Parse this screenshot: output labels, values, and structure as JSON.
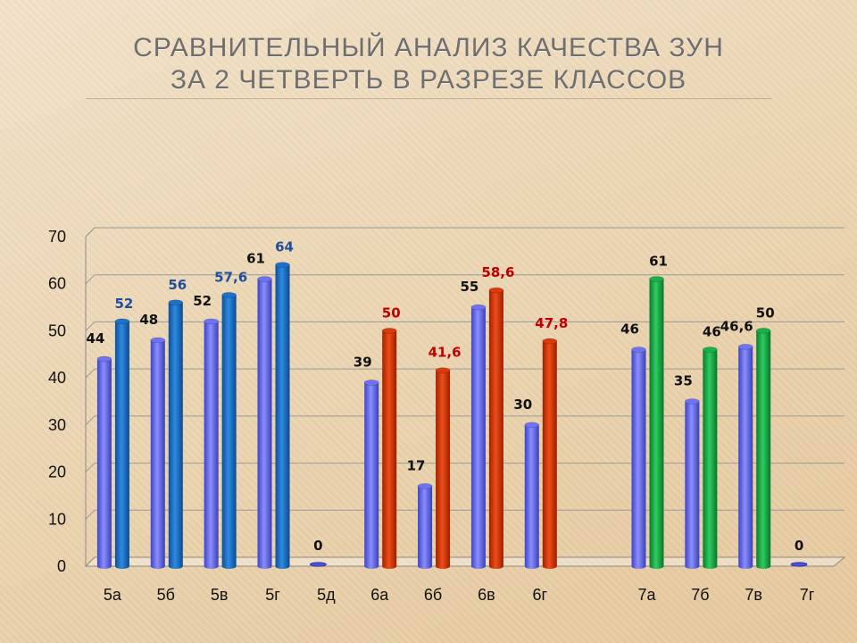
{
  "slide": {
    "title_line1": "СРАВНИТЕЛЬНЫЙ АНАЛИЗ КАЧЕСТВА ЗУН",
    "title_line2": "ЗА 2 ЧЕТВЕРТЬ В РАЗРЕЗЕ КЛАССОВ"
  },
  "chart_data": {
    "type": "bar",
    "grid": true,
    "legend": "none",
    "ylim": [
      0,
      70
    ],
    "yticks": [
      "0",
      "10",
      "20",
      "30",
      "40",
      "50",
      "60",
      "70"
    ],
    "categories": [
      "5а",
      "5б",
      "5в",
      "5г",
      "5д",
      "6а",
      "6б",
      "6в",
      "6г",
      "",
      "7а",
      "7б",
      "7в",
      "7г"
    ],
    "series": [
      {
        "values": [
          44,
          48,
          52,
          61,
          0,
          39,
          17,
          55,
          30,
          null,
          46,
          35,
          46.6,
          0
        ],
        "labels": [
          "44",
          "48",
          "52",
          "61",
          "0",
          "39",
          "17",
          "55",
          "30",
          "",
          "46",
          "35",
          "46,6",
          "0"
        ],
        "color": "#6f73f2",
        "label_color": "#111111"
      },
      {
        "values": [
          52,
          56,
          57.6,
          64,
          null,
          50,
          41.6,
          58.6,
          47.8,
          null,
          61,
          46,
          50,
          null
        ],
        "labels": [
          "52",
          "56",
          "57,6",
          "64",
          "",
          "50",
          "41,6",
          "58,6",
          "47,8",
          "",
          "61",
          "46",
          "50",
          ""
        ],
        "colors": [
          "#1d72c8",
          "#1d72c8",
          "#1d72c8",
          "#1d72c8",
          "#1d72c8",
          "#d93a10",
          "#d93a10",
          "#d93a10",
          "#d93a10",
          "#d93a10",
          "#19b04a",
          "#19b04a",
          "#19b04a",
          "#19b04a"
        ],
        "label_colors": [
          "#1f4e9c",
          "#1f4e9c",
          "#1f4e9c",
          "#1f4e9c",
          "#1f4e9c",
          "#c00000",
          "#c00000",
          "#c00000",
          "#c00000",
          "#c00000",
          "#111111",
          "#111111",
          "#111111",
          "#111111"
        ]
      }
    ]
  }
}
